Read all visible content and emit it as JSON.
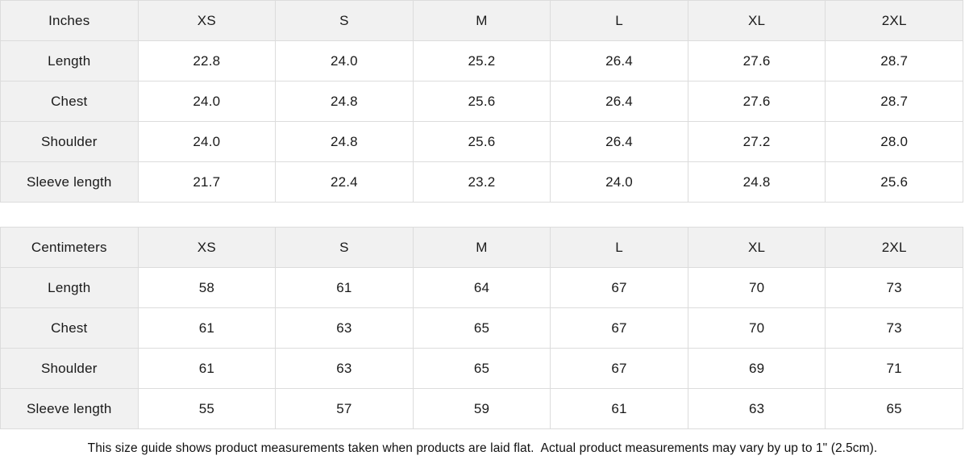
{
  "size_guide": {
    "inches": {
      "unit_label": "Inches",
      "sizes": [
        "XS",
        "S",
        "M",
        "L",
        "XL",
        "2XL"
      ],
      "rows": [
        {
          "label": "Length",
          "values": [
            "22.8",
            "24.0",
            "25.2",
            "26.4",
            "27.6",
            "28.7"
          ]
        },
        {
          "label": "Chest",
          "values": [
            "24.0",
            "24.8",
            "25.6",
            "26.4",
            "27.6",
            "28.7"
          ]
        },
        {
          "label": "Shoulder",
          "values": [
            "24.0",
            "24.8",
            "25.6",
            "26.4",
            "27.2",
            "28.0"
          ]
        },
        {
          "label": "Sleeve length",
          "values": [
            "21.7",
            "22.4",
            "23.2",
            "24.0",
            "24.8",
            "25.6"
          ]
        }
      ]
    },
    "centimeters": {
      "unit_label": "Centimeters",
      "sizes": [
        "XS",
        "S",
        "M",
        "L",
        "XL",
        "2XL"
      ],
      "rows": [
        {
          "label": "Length",
          "values": [
            "58",
            "61",
            "64",
            "67",
            "70",
            "73"
          ]
        },
        {
          "label": "Chest",
          "values": [
            "61",
            "63",
            "65",
            "67",
            "70",
            "73"
          ]
        },
        {
          "label": "Shoulder",
          "values": [
            "61",
            "63",
            "65",
            "67",
            "69",
            "71"
          ]
        },
        {
          "label": "Sleeve length",
          "values": [
            "55",
            "57",
            "59",
            "61",
            "63",
            "65"
          ]
        }
      ]
    },
    "footer_note": "This size guide shows product measurements taken when products are laid flat.  Actual product measurements may vary by up to 1\" (2.5cm)."
  },
  "colors": {
    "header_bg": "#f1f1f1",
    "border": "#dcdcdc",
    "text": "#1a1a1a"
  },
  "chart_data": [
    {
      "type": "table",
      "title": "Size guide (Inches)",
      "columns": [
        "Inches",
        "XS",
        "S",
        "M",
        "L",
        "XL",
        "2XL"
      ],
      "rows": [
        [
          "Length",
          22.8,
          24.0,
          25.2,
          26.4,
          27.6,
          28.7
        ],
        [
          "Chest",
          24.0,
          24.8,
          25.6,
          26.4,
          27.6,
          28.7
        ],
        [
          "Shoulder",
          24.0,
          24.8,
          25.6,
          26.4,
          27.2,
          28.0
        ],
        [
          "Sleeve length",
          21.7,
          22.4,
          23.2,
          24.0,
          24.8,
          25.6
        ]
      ]
    },
    {
      "type": "table",
      "title": "Size guide (Centimeters)",
      "columns": [
        "Centimeters",
        "XS",
        "S",
        "M",
        "L",
        "XL",
        "2XL"
      ],
      "rows": [
        [
          "Length",
          58,
          61,
          64,
          67,
          70,
          73
        ],
        [
          "Chest",
          61,
          63,
          65,
          67,
          70,
          73
        ],
        [
          "Shoulder",
          61,
          63,
          65,
          67,
          69,
          71
        ],
        [
          "Sleeve length",
          55,
          57,
          59,
          61,
          63,
          65
        ]
      ]
    }
  ]
}
